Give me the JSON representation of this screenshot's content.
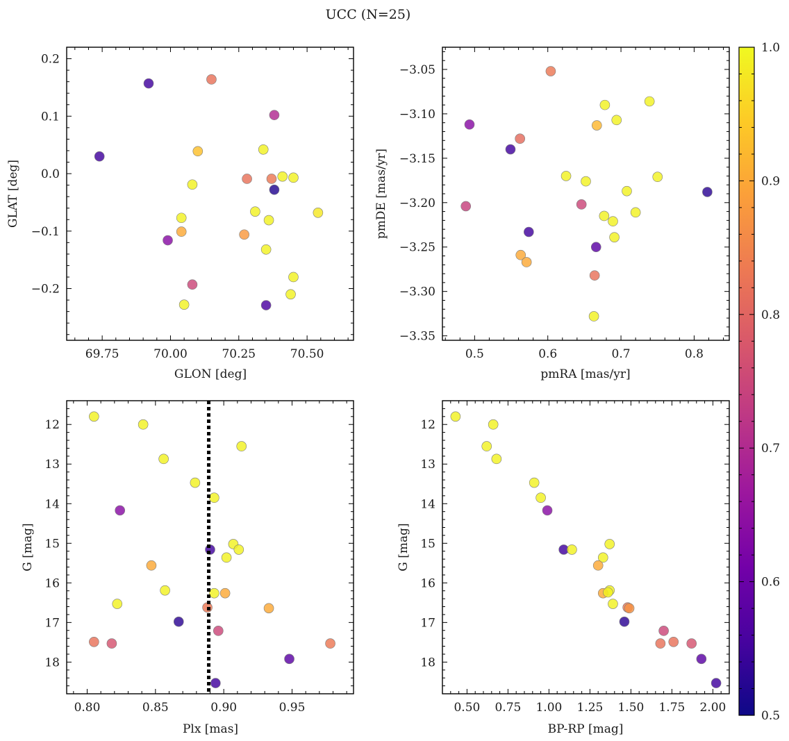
{
  "figure": {
    "title": "UCC (N=25)"
  },
  "colorbar": {
    "range": [
      0.5,
      1.0
    ],
    "ticks": [
      0.5,
      0.6,
      0.7,
      0.8,
      0.9,
      1.0
    ],
    "tick_labels": [
      "0.5",
      "0.6",
      "0.7",
      "0.8",
      "0.9",
      "1.0"
    ],
    "colormap": "plasma",
    "stops": [
      "#0d0887",
      "#47039f",
      "#7301a8",
      "#9c179e",
      "#bd3786",
      "#d8576b",
      "#ed7953",
      "#fb9f3a",
      "#fdca26",
      "#f0f921"
    ]
  },
  "chart_data": [
    {
      "type": "scatter",
      "xlabel": "GLON [deg]",
      "ylabel": "GLAT [deg]",
      "xlim": [
        69.62,
        70.67
      ],
      "ylim": [
        -0.29,
        0.22
      ],
      "xticks": [
        69.75,
        70.0,
        70.25,
        70.5
      ],
      "xtick_labels": [
        "69.75",
        "70.00",
        "70.25",
        "70.50"
      ],
      "yticks": [
        -0.2,
        -0.1,
        0.0,
        0.1,
        0.2
      ],
      "ytick_labels": [
        "−0.2",
        "−0.1",
        "0.0",
        "0.1",
        "0.2"
      ],
      "x": [
        69.74,
        69.92,
        70.15,
        70.38,
        70.1,
        70.34,
        70.08,
        70.28,
        70.37,
        70.38,
        70.41,
        70.45,
        70.04,
        70.04,
        69.99,
        70.27,
        70.31,
        70.36,
        70.35,
        70.54,
        70.45,
        70.08,
        70.05,
        70.35,
        70.44
      ],
      "y": [
        0.03,
        0.157,
        0.164,
        0.102,
        0.039,
        0.042,
        -0.019,
        -0.009,
        -0.009,
        -0.028,
        -0.005,
        -0.007,
        -0.077,
        -0.101,
        -0.116,
        -0.106,
        -0.066,
        -0.081,
        -0.132,
        -0.068,
        -0.18,
        -0.193,
        -0.228,
        -0.229,
        -0.21
      ],
      "c": [
        0.55,
        0.55,
        0.82,
        0.7,
        0.93,
        0.99,
        0.99,
        0.82,
        0.83,
        0.52,
        0.99,
        0.99,
        0.99,
        0.9,
        0.64,
        0.88,
        0.99,
        0.99,
        0.99,
        0.98,
        0.99,
        0.75,
        0.99,
        0.56,
        0.99
      ]
    },
    {
      "type": "scatter",
      "xlabel": "pmRA [mas/yr]",
      "ylabel": "pmDE [mas/yr]",
      "xlim": [
        0.456,
        0.848
      ],
      "ylim": [
        -3.355,
        -3.025
      ],
      "xticks": [
        0.5,
        0.6,
        0.7,
        0.8
      ],
      "xtick_labels": [
        "0.5",
        "0.6",
        "0.7",
        "0.8"
      ],
      "yticks": [
        -3.35,
        -3.3,
        -3.25,
        -3.2,
        -3.15,
        -3.1,
        -3.05
      ],
      "ytick_labels": [
        "−3.35",
        "−3.30",
        "−3.25",
        "−3.20",
        "−3.15",
        "−3.10",
        "−3.05"
      ],
      "x": [
        0.604,
        0.739,
        0.678,
        0.694,
        0.493,
        0.667,
        0.562,
        0.549,
        0.625,
        0.652,
        0.75,
        0.708,
        0.818,
        0.488,
        0.646,
        0.677,
        0.689,
        0.72,
        0.574,
        0.666,
        0.691,
        0.563,
        0.571,
        0.664,
        0.663
      ],
      "y": [
        -3.052,
        -3.086,
        -3.09,
        -3.107,
        -3.112,
        -3.113,
        -3.128,
        -3.14,
        -3.17,
        -3.176,
        -3.171,
        -3.187,
        -3.188,
        -3.204,
        -3.202,
        -3.215,
        -3.221,
        -3.211,
        -3.233,
        -3.25,
        -3.239,
        -3.259,
        -3.267,
        -3.282,
        -3.328
      ],
      "c": [
        0.83,
        0.99,
        0.99,
        0.99,
        0.64,
        0.92,
        0.81,
        0.55,
        0.99,
        0.99,
        0.99,
        0.99,
        0.53,
        0.74,
        0.75,
        0.99,
        0.99,
        0.99,
        0.55,
        0.58,
        0.99,
        0.9,
        0.9,
        0.82,
        0.99
      ]
    },
    {
      "type": "scatter",
      "xlabel": "Plx [mas]",
      "ylabel": "G [mag]",
      "xlim": [
        0.785,
        0.995
      ],
      "ylim": [
        18.8,
        11.4
      ],
      "xticks": [
        0.8,
        0.85,
        0.9,
        0.95
      ],
      "xtick_labels": [
        "0.80",
        "0.85",
        "0.90",
        "0.95"
      ],
      "yticks": [
        12,
        13,
        14,
        15,
        16,
        17,
        18
      ],
      "ytick_labels": [
        "12",
        "13",
        "14",
        "15",
        "16",
        "17",
        "18"
      ],
      "vline": 0.889,
      "x": [
        0.805,
        0.841,
        0.913,
        0.856,
        0.879,
        0.893,
        0.824,
        0.907,
        0.89,
        0.911,
        0.902,
        0.847,
        0.857,
        0.893,
        0.901,
        0.822,
        0.888,
        0.933,
        0.867,
        0.896,
        0.805,
        0.818,
        0.978,
        0.948,
        0.894
      ],
      "y": [
        11.8,
        12.0,
        12.55,
        12.87,
        13.47,
        13.85,
        14.17,
        15.02,
        15.16,
        15.16,
        15.36,
        15.56,
        16.19,
        16.26,
        16.26,
        16.53,
        16.62,
        16.64,
        16.98,
        17.21,
        17.49,
        17.53,
        17.53,
        17.92,
        18.53
      ],
      "c": [
        0.99,
        0.99,
        0.99,
        0.99,
        0.99,
        0.99,
        0.64,
        0.99,
        0.55,
        0.99,
        0.99,
        0.9,
        0.99,
        0.99,
        0.9,
        0.99,
        0.83,
        0.9,
        0.53,
        0.75,
        0.82,
        0.77,
        0.83,
        0.58,
        0.55
      ]
    },
    {
      "type": "scatter",
      "xlabel": "BP-RP [mag]",
      "ylabel": "G [mag]",
      "xlim": [
        0.35,
        2.1
      ],
      "ylim": [
        18.8,
        11.4
      ],
      "xticks": [
        0.5,
        0.75,
        1.0,
        1.25,
        1.5,
        1.75,
        2.0
      ],
      "xtick_labels": [
        "0.50",
        "0.75",
        "1.00",
        "1.25",
        "1.50",
        "1.75",
        "2.00"
      ],
      "yticks": [
        12,
        13,
        14,
        15,
        16,
        17,
        18
      ],
      "ytick_labels": [
        "12",
        "13",
        "14",
        "15",
        "16",
        "17",
        "18"
      ],
      "x": [
        0.43,
        0.66,
        0.62,
        0.68,
        0.91,
        0.95,
        0.99,
        1.37,
        1.09,
        1.14,
        1.33,
        1.3,
        1.37,
        1.33,
        1.36,
        1.39,
        1.48,
        1.49,
        1.46,
        1.7,
        1.76,
        1.68,
        1.87,
        1.93,
        2.02
      ],
      "y": [
        11.8,
        12.0,
        12.55,
        12.87,
        13.47,
        13.85,
        14.17,
        15.02,
        15.16,
        15.16,
        15.36,
        15.56,
        16.19,
        16.26,
        16.24,
        16.53,
        16.62,
        16.64,
        16.98,
        17.21,
        17.49,
        17.53,
        17.53,
        17.92,
        18.53
      ],
      "c": [
        0.99,
        0.99,
        0.99,
        0.99,
        0.99,
        0.99,
        0.64,
        0.99,
        0.55,
        0.99,
        0.99,
        0.9,
        0.99,
        0.9,
        0.99,
        0.99,
        0.83,
        0.87,
        0.53,
        0.75,
        0.82,
        0.82,
        0.77,
        0.58,
        0.55
      ]
    }
  ]
}
